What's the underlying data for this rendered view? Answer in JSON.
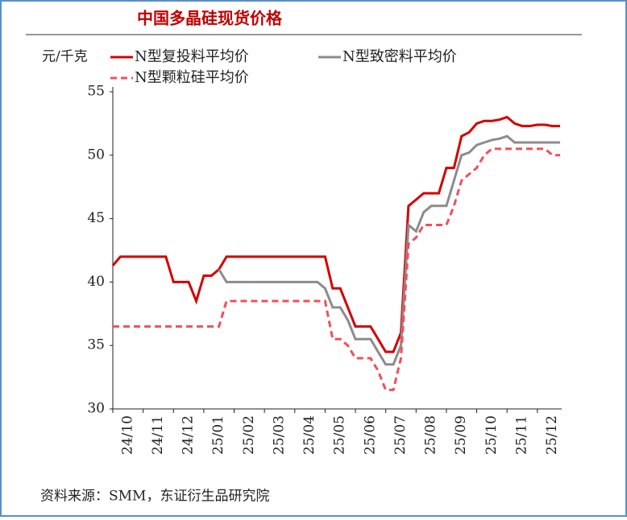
{
  "chart_data": {
    "type": "line",
    "title": "中国多晶硅现货价格",
    "y_label": "元/千克",
    "source": "资料来源：SMM，东证衍生品研究院",
    "categories": [
      null,
      null,
      "24/10",
      null,
      null,
      null,
      "24/11",
      null,
      null,
      null,
      "24/12",
      null,
      null,
      null,
      "25/01",
      null,
      null,
      null,
      "25/02",
      null,
      null,
      null,
      "25/03",
      null,
      null,
      null,
      "25/04",
      null,
      null,
      null,
      "25/05",
      null,
      null,
      null,
      "25/06",
      null,
      null,
      null,
      "25/07",
      null,
      null,
      null,
      "25/08",
      null,
      null,
      null,
      "25/09",
      null,
      null,
      null,
      "25/10",
      null,
      null,
      null,
      "25/11",
      null,
      null,
      null,
      "25/12",
      null
    ],
    "series": [
      {
        "name": "N型复投料平均价",
        "color": "#d40000",
        "dash": false,
        "values": [
          41.3,
          42,
          42,
          42,
          42,
          42,
          42,
          42,
          40,
          40,
          40,
          38.5,
          40.5,
          40.5,
          41,
          42,
          42,
          42,
          42,
          42,
          42,
          42,
          42,
          42,
          42,
          42,
          42,
          42,
          42,
          39.5,
          39.5,
          38,
          36.5,
          36.5,
          36.5,
          35.5,
          34.5,
          34.5,
          36,
          46,
          46.5,
          47,
          47,
          47,
          49,
          49,
          51.5,
          51.8,
          52.5,
          52.7,
          52.7,
          52.8,
          53,
          52.5,
          52.3,
          52.3,
          52.4,
          52.4,
          52.3,
          52.3
        ]
      },
      {
        "name": "N型致密料平均价",
        "color": "#8c8c8c",
        "dash": false,
        "values": [
          null,
          null,
          null,
          null,
          null,
          null,
          null,
          null,
          null,
          null,
          null,
          null,
          null,
          null,
          41,
          40,
          40,
          40,
          40,
          40,
          40,
          40,
          40,
          40,
          40,
          40,
          40,
          40,
          39.5,
          38,
          38,
          37,
          35.5,
          35.5,
          35.5,
          34.5,
          33.5,
          33.5,
          35,
          44.5,
          44,
          45.5,
          46,
          46,
          46,
          48,
          50,
          50.2,
          50.8,
          51,
          51.2,
          51.3,
          51.5,
          51,
          51,
          51,
          51,
          51,
          51,
          51
        ]
      },
      {
        "name": "N型颗粒硅平均价",
        "color": "#f0505a",
        "dash": true,
        "values": [
          36.5,
          36.5,
          36.5,
          36.5,
          36.5,
          36.5,
          36.5,
          36.5,
          36.5,
          36.5,
          36.5,
          36.5,
          36.5,
          36.5,
          36.5,
          38.5,
          38.5,
          38.5,
          38.5,
          38.5,
          38.5,
          38.5,
          38.5,
          38.5,
          38.5,
          38.5,
          38.5,
          38.5,
          38.5,
          35.5,
          35.5,
          35,
          34,
          34,
          34,
          33,
          31.5,
          31.5,
          34,
          43,
          43.5,
          44.5,
          44.5,
          44.5,
          44.5,
          46,
          48,
          48.5,
          49,
          50,
          50.5,
          50.5,
          50.5,
          50.5,
          50.5,
          50.5,
          50.5,
          50.5,
          50,
          50
        ]
      }
    ],
    "ylim": [
      30,
      55
    ],
    "yticks": [
      30,
      35,
      40,
      45,
      50,
      55
    ],
    "grid": false
  }
}
